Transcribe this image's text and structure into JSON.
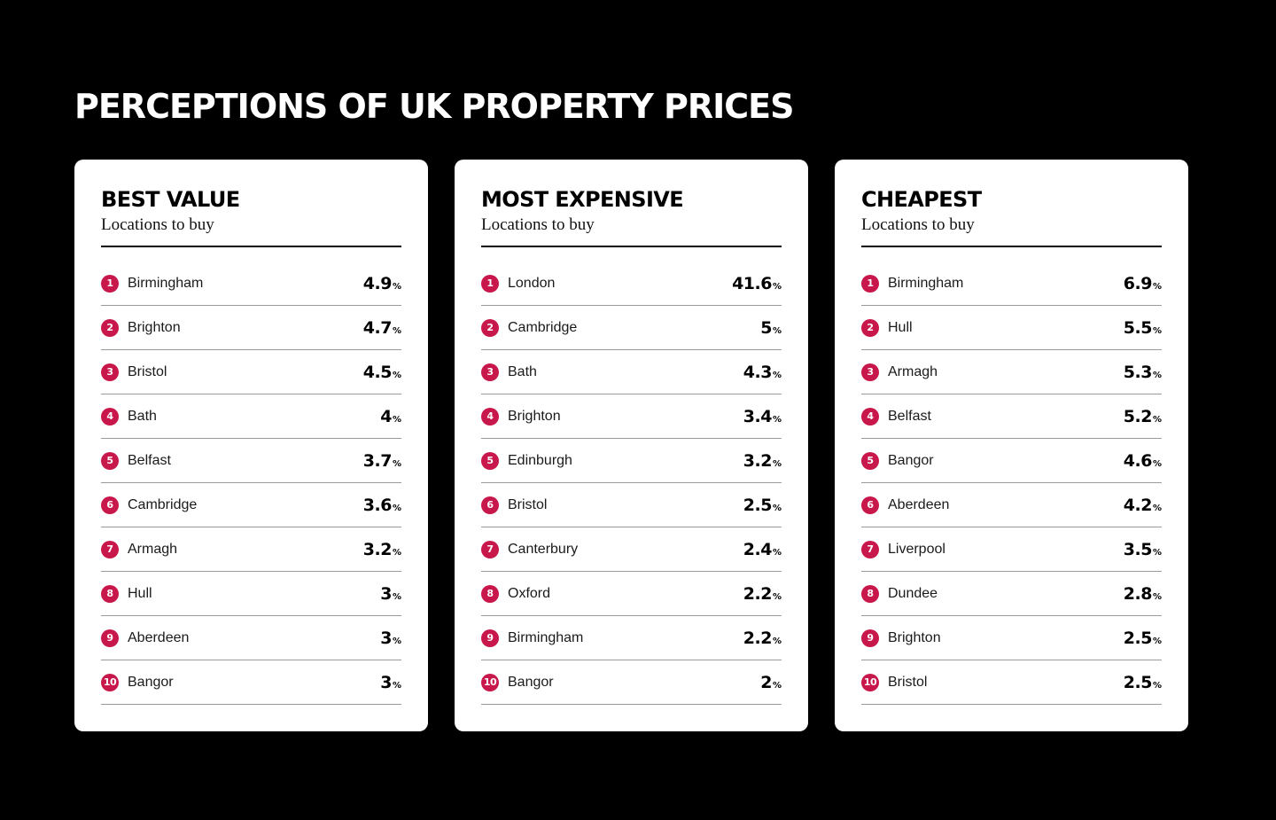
{
  "title": "PERCEPTIONS OF UK PROPERTY PRICES",
  "brand_color": "#c8174b",
  "cards": [
    {
      "title": "BEST VALUE",
      "subtitle": "Locations to buy",
      "rows": [
        {
          "rank": "1",
          "city": "Birmingham",
          "value": "4.9",
          "unit": "%"
        },
        {
          "rank": "2",
          "city": "Brighton",
          "value": "4.7",
          "unit": "%"
        },
        {
          "rank": "3",
          "city": "Bristol",
          "value": "4.5",
          "unit": "%"
        },
        {
          "rank": "4",
          "city": "Bath",
          "value": "4",
          "unit": "%"
        },
        {
          "rank": "5",
          "city": "Belfast",
          "value": "3.7",
          "unit": "%"
        },
        {
          "rank": "6",
          "city": "Cambridge",
          "value": "3.6",
          "unit": "%"
        },
        {
          "rank": "7",
          "city": "Armagh",
          "value": "3.2",
          "unit": "%"
        },
        {
          "rank": "8",
          "city": "Hull",
          "value": "3",
          "unit": "%"
        },
        {
          "rank": "9",
          "city": "Aberdeen",
          "value": "3",
          "unit": "%"
        },
        {
          "rank": "10",
          "city": "Bangor",
          "value": "3",
          "unit": "%"
        }
      ]
    },
    {
      "title": "MOST EXPENSIVE",
      "subtitle": "Locations to buy",
      "rows": [
        {
          "rank": "1",
          "city": "London",
          "value": "41.6",
          "unit": "%"
        },
        {
          "rank": "2",
          "city": "Cambridge",
          "value": "5",
          "unit": "%"
        },
        {
          "rank": "3",
          "city": "Bath",
          "value": "4.3",
          "unit": "%"
        },
        {
          "rank": "4",
          "city": "Brighton",
          "value": "3.4",
          "unit": "%"
        },
        {
          "rank": "5",
          "city": "Edinburgh",
          "value": "3.2",
          "unit": "%"
        },
        {
          "rank": "6",
          "city": "Bristol",
          "value": "2.5",
          "unit": "%"
        },
        {
          "rank": "7",
          "city": "Canterbury",
          "value": "2.4",
          "unit": "%"
        },
        {
          "rank": "8",
          "city": "Oxford",
          "value": "2.2",
          "unit": "%"
        },
        {
          "rank": "9",
          "city": "Birmingham",
          "value": "2.2",
          "unit": "%"
        },
        {
          "rank": "10",
          "city": "Bangor",
          "value": "2",
          "unit": "%"
        }
      ]
    },
    {
      "title": "CHEAPEST",
      "subtitle": "Locations to buy",
      "rows": [
        {
          "rank": "1",
          "city": "Birmingham",
          "value": "6.9",
          "unit": "%"
        },
        {
          "rank": "2",
          "city": "Hull",
          "value": "5.5",
          "unit": "%"
        },
        {
          "rank": "3",
          "city": "Armagh",
          "value": "5.3",
          "unit": "%"
        },
        {
          "rank": "4",
          "city": "Belfast",
          "value": "5.2",
          "unit": "%"
        },
        {
          "rank": "5",
          "city": "Bangor",
          "value": "4.6",
          "unit": "%"
        },
        {
          "rank": "6",
          "city": "Aberdeen",
          "value": "4.2",
          "unit": "%"
        },
        {
          "rank": "7",
          "city": "Liverpool",
          "value": "3.5",
          "unit": "%"
        },
        {
          "rank": "8",
          "city": "Dundee",
          "value": "2.8",
          "unit": "%"
        },
        {
          "rank": "9",
          "city": "Brighton",
          "value": "2.5",
          "unit": "%"
        },
        {
          "rank": "10",
          "city": "Bristol",
          "value": "2.5",
          "unit": "%"
        }
      ]
    }
  ]
}
